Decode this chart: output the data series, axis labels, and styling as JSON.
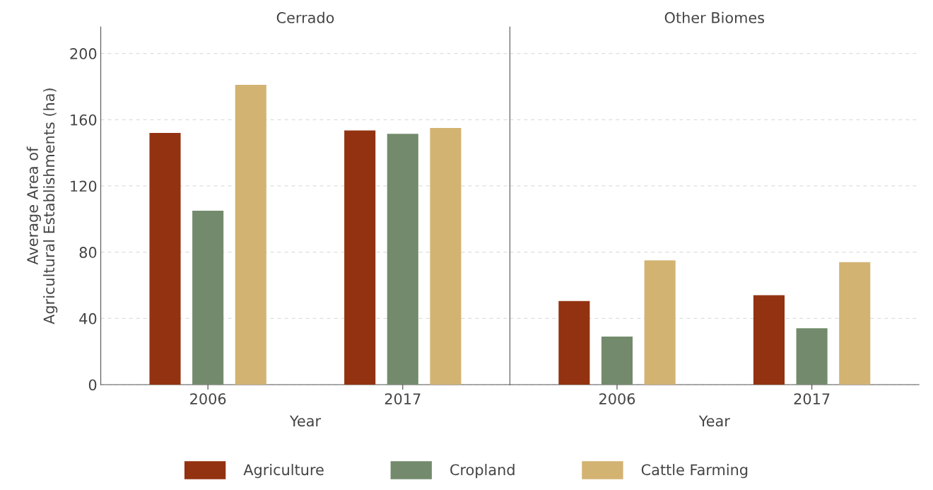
{
  "chart_data": [
    {
      "type": "bar",
      "title": "Cerrado",
      "xlabel": "Year",
      "ylabel": "Average Area of\nAgricultural Establishments (ha)",
      "categories": [
        "2006",
        "2017"
      ],
      "ylim": [
        0,
        216
      ],
      "yticks": [
        0,
        40,
        80,
        120,
        160,
        200
      ],
      "grid": "y",
      "legend": "bottom",
      "series": [
        {
          "name": "Agriculture",
          "color": "#933210",
          "values": [
            152,
            153.5
          ]
        },
        {
          "name": "Cropland",
          "color": "#738b6c",
          "values": [
            105,
            151.5
          ]
        },
        {
          "name": "Cattle Farming",
          "color": "#d3b372",
          "values": [
            181,
            155
          ]
        }
      ]
    },
    {
      "type": "bar",
      "title": "Other Biomes",
      "xlabel": "Year",
      "categories": [
        "2006",
        "2017"
      ],
      "ylim": [
        0,
        216
      ],
      "yticks": [
        0,
        40,
        80,
        120,
        160,
        200
      ],
      "grid": "y",
      "tick_labels": "x",
      "series": [
        {
          "color": "#933210",
          "values": [
            50.5,
            54
          ]
        },
        {
          "color": "#738b6c",
          "values": [
            29,
            34
          ]
        },
        {
          "color": "#d3b372",
          "values": [
            75,
            74
          ]
        }
      ]
    }
  ]
}
